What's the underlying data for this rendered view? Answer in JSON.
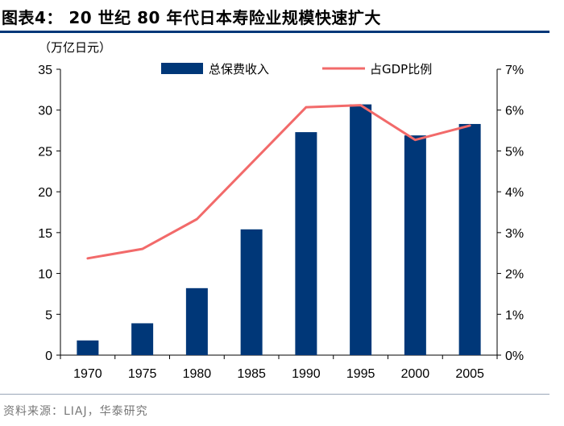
{
  "figure": {
    "title": "图表4：  20 世纪 80 年代日本寿险业规模快速扩大",
    "unit": "（万亿日元）",
    "source": "资料来源：LIAJ，华泰研究"
  },
  "colors": {
    "bar": "#003778",
    "line": "#F26A6A",
    "rule": "#003778"
  },
  "chart_data": {
    "type": "bar+line",
    "title": "20 世纪 80 年代日本寿险业规模快速扩大",
    "categories": [
      "1970",
      "1975",
      "1980",
      "1985",
      "1990",
      "1995",
      "2000",
      "2005"
    ],
    "series": [
      {
        "name": "总保费收入",
        "type": "bar",
        "axis": "left",
        "values": [
          1.8,
          3.9,
          8.2,
          15.4,
          27.3,
          30.7,
          26.9,
          28.3
        ]
      },
      {
        "name": "占GDP比例",
        "type": "line",
        "axis": "right",
        "values": [
          2.37,
          2.6,
          3.33,
          null,
          6.07,
          6.12,
          5.27,
          5.62
        ]
      }
    ],
    "y_left": {
      "label": "（万亿日元）",
      "min": 0,
      "max": 35,
      "ticks": [
        "0",
        "5",
        "10",
        "15",
        "20",
        "25",
        "30",
        "35"
      ]
    },
    "y_right": {
      "label": "",
      "min": 0,
      "max": 7,
      "ticks": [
        "0%",
        "1%",
        "2%",
        "3%",
        "4%",
        "5%",
        "6%",
        "7%"
      ]
    },
    "grid": false,
    "legend_position": "top"
  }
}
